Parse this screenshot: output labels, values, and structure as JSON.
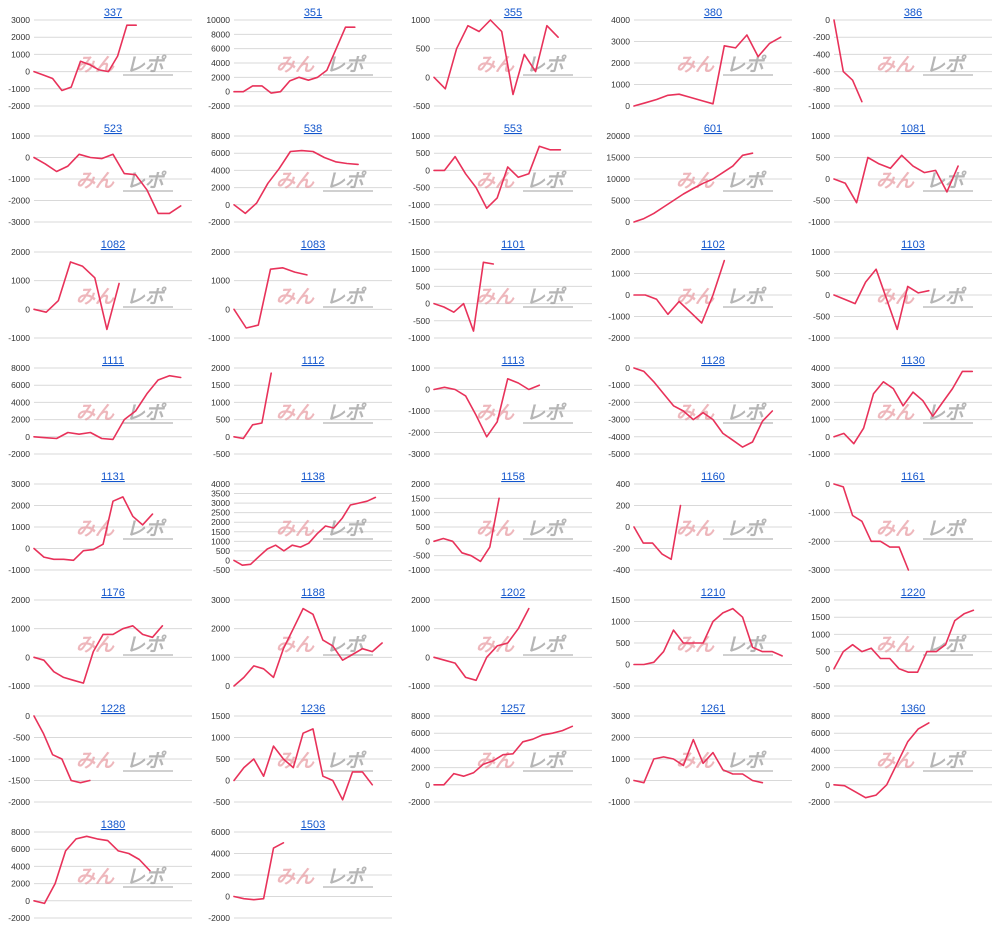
{
  "watermark": {
    "part_a": "みんレポ",
    "part_b": "",
    "color_a": "#e9a0a6",
    "color_b": "#9e9e9e"
  },
  "line_color": "#e8325a",
  "link_color": "#1155cc",
  "chart_data": [
    {
      "type": "line",
      "title": "337",
      "yticks": [
        3000,
        2000,
        1000,
        0,
        -1000,
        -2000
      ],
      "ylim": [
        -2000,
        3000
      ],
      "values": [
        0,
        -200,
        -400,
        -1100,
        -900,
        600,
        400,
        100,
        0,
        900,
        2700,
        2700
      ],
      "xmax": 17
    },
    {
      "type": "line",
      "title": "351",
      "yticks": [
        10000,
        8000,
        6000,
        4000,
        2000,
        0,
        -2000
      ],
      "ylim": [
        -2000,
        10000
      ],
      "values": [
        0,
        0,
        800,
        800,
        -200,
        0,
        1500,
        2000,
        1600,
        2000,
        3000,
        6000,
        9000,
        9000
      ],
      "xmax": 17
    },
    {
      "type": "line",
      "title": "355",
      "yticks": [
        1000,
        500,
        0,
        -500
      ],
      "ylim": [
        -500,
        1000
      ],
      "values": [
        0,
        -200,
        500,
        900,
        800,
        1000,
        800,
        -300,
        400,
        100,
        900,
        700
      ],
      "xmax": 14
    },
    {
      "type": "line",
      "title": "380",
      "yticks": [
        4000,
        3000,
        2000,
        1000,
        0
      ],
      "ylim": [
        0,
        4000
      ],
      "values": [
        0,
        150,
        300,
        500,
        550,
        400,
        250,
        100,
        2800,
        2700,
        3300,
        2300,
        2900,
        3200
      ],
      "xmax": 14
    },
    {
      "type": "line",
      "title": "386",
      "yticks": [
        0,
        -200,
        -400,
        -600,
        -800,
        -1000
      ],
      "ylim": [
        -1000,
        0
      ],
      "values": [
        0,
        -600,
        -700,
        -950
      ],
      "xmax": 17
    },
    {
      "type": "line",
      "title": "523",
      "yticks": [
        1000,
        0,
        -1000,
        -2000,
        -3000
      ],
      "ylim": [
        -3000,
        1000
      ],
      "values": [
        0,
        -300,
        -650,
        -400,
        150,
        0,
        -50,
        150,
        -750,
        -800,
        -1500,
        -2600,
        -2600,
        -2250
      ],
      "xmax": 14
    },
    {
      "type": "line",
      "title": "538",
      "yticks": [
        8000,
        6000,
        4000,
        2000,
        0,
        -2000
      ],
      "ylim": [
        -2000,
        8000
      ],
      "values": [
        0,
        -1000,
        200,
        2500,
        4200,
        6200,
        6300,
        6200,
        5500,
        5000,
        4800,
        4700
      ],
      "xmax": 14
    },
    {
      "type": "line",
      "title": "553",
      "yticks": [
        1000,
        500,
        0,
        -500,
        -1000,
        -1500
      ],
      "ylim": [
        -1500,
        1000
      ],
      "values": [
        0,
        0,
        400,
        -100,
        -500,
        -1100,
        -800,
        100,
        -200,
        -100,
        700,
        600,
        600
      ],
      "xmax": 15
    },
    {
      "type": "line",
      "title": "601",
      "yticks": [
        20000,
        15000,
        10000,
        5000,
        0
      ],
      "ylim": [
        0,
        20000
      ],
      "values": [
        0,
        800,
        2000,
        3500,
        5000,
        6500,
        7800,
        9000,
        10000,
        11500,
        13000,
        15500,
        16000
      ],
      "xmax": 16
    },
    {
      "type": "line",
      "title": "1081",
      "yticks": [
        1000,
        500,
        0,
        -500,
        -1000
      ],
      "ylim": [
        -1000,
        1000
      ],
      "values": [
        0,
        -100,
        -550,
        500,
        350,
        250,
        550,
        300,
        150,
        200,
        -300,
        300
      ],
      "xmax": 14
    },
    {
      "type": "line",
      "title": "1082",
      "yticks": [
        2000,
        1000,
        0,
        -1000
      ],
      "ylim": [
        -1000,
        2000
      ],
      "values": [
        0,
        -100,
        300,
        1650,
        1500,
        1100,
        -700,
        900
      ],
      "xmax": 13
    },
    {
      "type": "line",
      "title": "1083",
      "yticks": [
        2000,
        1000,
        0,
        -1000
      ],
      "ylim": [
        -1000,
        2000
      ],
      "values": [
        0,
        -650,
        -550,
        1400,
        1450,
        1300,
        1200
      ],
      "xmax": 13
    },
    {
      "type": "line",
      "title": "1101",
      "yticks": [
        1500,
        1000,
        500,
        0,
        -500,
        -1000
      ],
      "ylim": [
        -1000,
        1500
      ],
      "values": [
        0,
        -100,
        -250,
        0,
        -800,
        1200,
        1150
      ],
      "xmax": 16
    },
    {
      "type": "line",
      "title": "1102",
      "yticks": [
        2000,
        1000,
        0,
        -1000,
        -2000
      ],
      "ylim": [
        -2000,
        2000
      ],
      "values": [
        0,
        0,
        -200,
        -900,
        -300,
        -800,
        -1300,
        0,
        1600
      ],
      "xmax": 14
    },
    {
      "type": "line",
      "title": "1103",
      "yticks": [
        1000,
        500,
        0,
        -500,
        -1000
      ],
      "ylim": [
        -1000,
        1000
      ],
      "values": [
        0,
        -100,
        -200,
        300,
        600,
        -100,
        -800,
        200,
        50,
        100
      ],
      "xmax": 15
    },
    {
      "type": "line",
      "title": "1111",
      "yticks": [
        8000,
        6000,
        4000,
        2000,
        0,
        -2000
      ],
      "ylim": [
        -2000,
        8000
      ],
      "values": [
        0,
        -100,
        -200,
        500,
        300,
        500,
        -200,
        -300,
        2000,
        3000,
        5000,
        6600,
        7100,
        6900
      ],
      "xmax": 14
    },
    {
      "type": "line",
      "title": "1112",
      "yticks": [
        2000,
        1500,
        1000,
        500,
        0,
        -500
      ],
      "ylim": [
        -500,
        2000
      ],
      "values": [
        0,
        -50,
        350,
        400,
        1850
      ],
      "xmax": 17
    },
    {
      "type": "line",
      "title": "1113",
      "yticks": [
        1000,
        0,
        -1000,
        -2000,
        -3000
      ],
      "ylim": [
        -3000,
        1000
      ],
      "values": [
        0,
        100,
        0,
        -300,
        -1200,
        -2200,
        -1500,
        500,
        300,
        0,
        200
      ],
      "xmax": 15
    },
    {
      "type": "line",
      "title": "1128",
      "yticks": [
        0,
        -1000,
        -2000,
        -3000,
        -4000,
        -5000
      ],
      "ylim": [
        -5000,
        0
      ],
      "values": [
        0,
        -200,
        -800,
        -1500,
        -2200,
        -2500,
        -3000,
        -2600,
        -3000,
        -3800,
        -4200,
        -4600,
        -4300,
        -3100,
        -2500
      ],
      "xmax": 16
    },
    {
      "type": "line",
      "title": "1130",
      "yticks": [
        4000,
        3000,
        2000,
        1000,
        0,
        -1000
      ],
      "ylim": [
        -1000,
        4000
      ],
      "values": [
        0,
        200,
        -400,
        500,
        2500,
        3200,
        2800,
        1800,
        2600,
        2100,
        1200,
        2000,
        2800,
        3800,
        3800
      ],
      "xmax": 16
    },
    {
      "type": "line",
      "title": "1131",
      "yticks": [
        3000,
        2000,
        1000,
        0,
        -1000
      ],
      "ylim": [
        -1000,
        3000
      ],
      "values": [
        0,
        -400,
        -500,
        -500,
        -550,
        -100,
        -50,
        200,
        2200,
        2400,
        1500,
        1100,
        1600
      ],
      "xmax": 16
    },
    {
      "type": "line",
      "title": "1138",
      "yticks": [
        4000,
        3500,
        3000,
        2500,
        2000,
        1500,
        1000,
        500,
        0,
        -500
      ],
      "ylim": [
        -500,
        4000
      ],
      "values": [
        0,
        -250,
        -200,
        200,
        600,
        800,
        500,
        800,
        700,
        900,
        1400,
        1800,
        1700,
        2200,
        2900,
        3000,
        3100,
        3300
      ],
      "xmax": 19
    },
    {
      "type": "line",
      "title": "1158",
      "yticks": [
        2000,
        1500,
        1000,
        500,
        0,
        -500,
        -1000
      ],
      "ylim": [
        -1000,
        2000
      ],
      "values": [
        0,
        100,
        0,
        -400,
        -500,
        -700,
        -200,
        1500
      ],
      "xmax": 17
    },
    {
      "type": "line",
      "title": "1160",
      "yticks": [
        400,
        200,
        0,
        -200,
        -400
      ],
      "ylim": [
        -400,
        400
      ],
      "values": [
        0,
        -150,
        -150,
        -250,
        -300,
        200
      ],
      "xmax": 17
    },
    {
      "type": "line",
      "title": "1161",
      "yticks": [
        0,
        -1000,
        -2000,
        -3000
      ],
      "ylim": [
        -3000,
        0
      ],
      "values": [
        0,
        -100,
        -1100,
        -1300,
        -2000,
        -2000,
        -2200,
        -2200,
        -3000
      ],
      "xmax": 17
    },
    {
      "type": "line",
      "title": "1176",
      "yticks": [
        2000,
        1000,
        0,
        -1000
      ],
      "ylim": [
        -1000,
        2000
      ],
      "values": [
        0,
        -100,
        -500,
        -700,
        -800,
        -900,
        200,
        800,
        800,
        1000,
        1100,
        800,
        700,
        1100
      ],
      "xmax": 16
    },
    {
      "type": "line",
      "title": "1188",
      "yticks": [
        3000,
        2000,
        1000,
        0
      ],
      "ylim": [
        0,
        3000
      ],
      "values": [
        0,
        300,
        700,
        600,
        300,
        1300,
        2000,
        2700,
        2500,
        1600,
        1400,
        900,
        1100,
        1300,
        1200,
        1500
      ],
      "xmax": 16
    },
    {
      "type": "line",
      "title": "1202",
      "yticks": [
        2000,
        1000,
        0,
        -1000
      ],
      "ylim": [
        -1000,
        2000
      ],
      "values": [
        0,
        -100,
        -200,
        -700,
        -800,
        0,
        400,
        500,
        1000,
        1700
      ],
      "xmax": 15
    },
    {
      "type": "line",
      "title": "1210",
      "yticks": [
        1500,
        1000,
        500,
        0,
        -500
      ],
      "ylim": [
        -500,
        1500
      ],
      "values": [
        0,
        0,
        50,
        300,
        800,
        500,
        500,
        500,
        1000,
        1200,
        1300,
        1100,
        400,
        300,
        300,
        200
      ],
      "xmax": 16
    },
    {
      "type": "line",
      "title": "1220",
      "yticks": [
        2000,
        1500,
        1000,
        500,
        0,
        -500
      ],
      "ylim": [
        -500,
        2000
      ],
      "values": [
        0,
        500,
        700,
        500,
        600,
        300,
        300,
        0,
        -100,
        -100,
        500,
        500,
        700,
        1400,
        1600,
        1700
      ],
      "xmax": 17
    },
    {
      "type": "line",
      "title": "1228",
      "yticks": [
        0,
        -500,
        -1000,
        -1500,
        -2000
      ],
      "ylim": [
        -2000,
        0
      ],
      "values": [
        0,
        -400,
        -900,
        -1000,
        -1500,
        -1550,
        -1500
      ],
      "xmax": 17
    },
    {
      "type": "line",
      "title": "1236",
      "yticks": [
        1500,
        1000,
        500,
        0,
        -500
      ],
      "ylim": [
        -500,
        1500
      ],
      "values": [
        0,
        300,
        500,
        100,
        800,
        500,
        300,
        1100,
        1200,
        100,
        0,
        -450,
        200,
        200,
        -100
      ],
      "xmax": 16
    },
    {
      "type": "line",
      "title": "1257",
      "yticks": [
        8000,
        6000,
        4000,
        2000,
        0,
        -2000
      ],
      "ylim": [
        -2000,
        8000
      ],
      "values": [
        0,
        0,
        1300,
        1000,
        1400,
        2400,
        2800,
        3500,
        3600,
        5000,
        5300,
        5800,
        6000,
        6300,
        6800
      ],
      "xmax": 16
    },
    {
      "type": "line",
      "title": "1261",
      "yticks": [
        3000,
        2000,
        1000,
        0,
        -1000
      ],
      "ylim": [
        -1000,
        3000
      ],
      "values": [
        0,
        -100,
        1000,
        1100,
        1000,
        700,
        1900,
        800,
        1300,
        500,
        300,
        300,
        0,
        -100
      ],
      "xmax": 16
    },
    {
      "type": "line",
      "title": "1360",
      "yticks": [
        8000,
        6000,
        4000,
        2000,
        0,
        -2000
      ],
      "ylim": [
        -2000,
        8000
      ],
      "values": [
        0,
        -100,
        -800,
        -1500,
        -1200,
        0,
        2500,
        5000,
        6500,
        7200
      ],
      "xmax": 15
    },
    {
      "type": "line",
      "title": "1380",
      "yticks": [
        8000,
        6000,
        4000,
        2000,
        0,
        -2000
      ],
      "ylim": [
        -2000,
        8000
      ],
      "values": [
        0,
        -300,
        2000,
        5800,
        7200,
        7500,
        7200,
        7000,
        5800,
        5500,
        4800,
        3500
      ],
      "xmax": 15
    },
    {
      "type": "line",
      "title": "1503",
      "yticks": [
        6000,
        4000,
        2000,
        0,
        -2000
      ],
      "ylim": [
        -2000,
        6000
      ],
      "values": [
        0,
        -200,
        -300,
        -200,
        4500,
        5000
      ],
      "xmax": 16
    }
  ]
}
